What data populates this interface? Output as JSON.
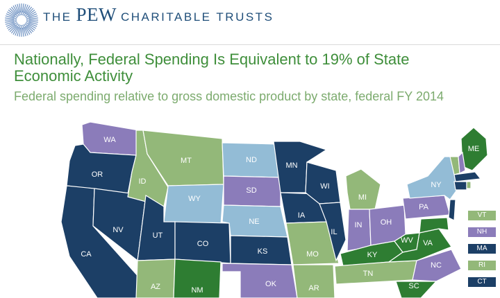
{
  "header": {
    "brand_the": "THE",
    "brand_pew": "PEW",
    "brand_rest": "CHARITABLE TRUSTS"
  },
  "chart": {
    "title": "Nationally, Federal Spending Is Equivalent to 19% of State Economic Activity",
    "subtitle": "Federal spending relative to gross domestic product by state, federal FY 2014"
  },
  "colors": {
    "dark_navy": "#1c3f66",
    "light_blue": "#93bcd6",
    "purple": "#8b7cba",
    "light_green": "#93b879",
    "dark_green": "#2e7d32",
    "brand_blue": "#1f4e79"
  },
  "states": [
    {
      "abbr": "WA",
      "category": "purple"
    },
    {
      "abbr": "OR",
      "category": "dark_navy"
    },
    {
      "abbr": "CA",
      "category": "dark_navy"
    },
    {
      "abbr": "NV",
      "category": "dark_navy"
    },
    {
      "abbr": "ID",
      "category": "light_green"
    },
    {
      "abbr": "MT",
      "category": "light_green"
    },
    {
      "abbr": "WY",
      "category": "light_blue"
    },
    {
      "abbr": "UT",
      "category": "dark_navy"
    },
    {
      "abbr": "CO",
      "category": "dark_navy"
    },
    {
      "abbr": "AZ",
      "category": "light_green"
    },
    {
      "abbr": "NM",
      "category": "dark_green"
    },
    {
      "abbr": "ND",
      "category": "light_blue"
    },
    {
      "abbr": "SD",
      "category": "purple"
    },
    {
      "abbr": "NE",
      "category": "light_blue"
    },
    {
      "abbr": "KS",
      "category": "dark_navy"
    },
    {
      "abbr": "OK",
      "category": "purple"
    },
    {
      "abbr": "MN",
      "category": "dark_navy"
    },
    {
      "abbr": "IA",
      "category": "dark_navy"
    },
    {
      "abbr": "MO",
      "category": "light_green"
    },
    {
      "abbr": "AR",
      "category": "light_green"
    },
    {
      "abbr": "WI",
      "category": "dark_navy"
    },
    {
      "abbr": "IL",
      "category": "dark_navy"
    },
    {
      "abbr": "MI",
      "category": "light_green"
    },
    {
      "abbr": "IN",
      "category": "purple"
    },
    {
      "abbr": "OH",
      "category": "purple"
    },
    {
      "abbr": "KY",
      "category": "dark_green"
    },
    {
      "abbr": "TN",
      "category": "light_green"
    },
    {
      "abbr": "WV",
      "category": "dark_green"
    },
    {
      "abbr": "VA",
      "category": "dark_green"
    },
    {
      "abbr": "NC",
      "category": "purple"
    },
    {
      "abbr": "SC",
      "category": "dark_green"
    },
    {
      "abbr": "PA",
      "category": "purple"
    },
    {
      "abbr": "NY",
      "category": "light_blue"
    },
    {
      "abbr": "ME",
      "category": "dark_green"
    }
  ],
  "legend": [
    {
      "abbr": "VT",
      "category": "light_green"
    },
    {
      "abbr": "NH",
      "category": "purple"
    },
    {
      "abbr": "MA",
      "category": "dark_navy"
    },
    {
      "abbr": "RI",
      "category": "light_green"
    },
    {
      "abbr": "CT",
      "category": "dark_navy"
    }
  ]
}
